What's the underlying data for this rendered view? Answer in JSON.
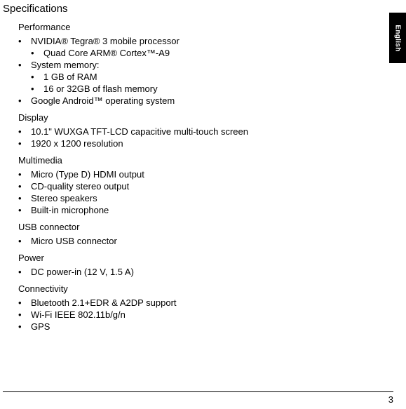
{
  "page_number": "3",
  "language_tab": "English",
  "title": "Specifications",
  "sections": [
    {
      "heading": "Performance",
      "items": [
        {
          "text": "NVIDIA® Tegra® 3 mobile processor",
          "sub": [
            "Quad Core ARM® Cortex™-A9"
          ]
        },
        {
          "text": "System  memory:",
          "sub": [
            "1 GB of RAM",
            "16 or 32GB of flash memory"
          ]
        },
        {
          "text": "Google Android™ operating system"
        }
      ]
    },
    {
      "heading": "Display",
      "items": [
        {
          "text": "10.1\" WUXGA TFT-LCD capacitive multi-touch screen"
        },
        {
          "text": "1920 x 1200 resolution"
        }
      ]
    },
    {
      "heading": "Multimedia",
      "items": [
        {
          "text": "Micro (Type D) HDMI output"
        },
        {
          "text": "CD-quality stereo output"
        },
        {
          "text": "Stereo speakers"
        },
        {
          "text": "Built-in microphone"
        }
      ]
    },
    {
      "heading": "USB connector",
      "items": [
        {
          "text": "Micro USB connector"
        }
      ]
    },
    {
      "heading": "Power",
      "items": [
        {
          "text": "DC power-in (12 V, 1.5 A)"
        }
      ]
    },
    {
      "heading": "Connectivity",
      "items": [
        {
          "text": "Bluetooth 2.1+EDR & A2DP support"
        },
        {
          "text": "Wi-Fi IEEE 802.11b/g/n"
        },
        {
          "text": "GPS"
        }
      ]
    }
  ]
}
